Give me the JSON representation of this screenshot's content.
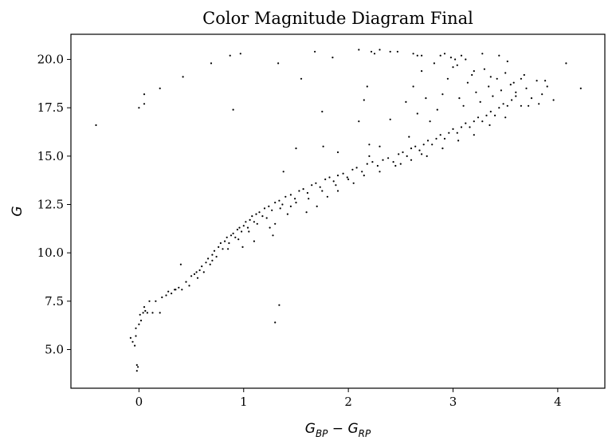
{
  "chart_data": {
    "type": "scatter",
    "title": "Color Magnitude Diagram Final",
    "xlabel": "G_BP − G_RP",
    "xlabel_parts": {
      "a": "G",
      "a_sub": "BP",
      "op": " − ",
      "b": "G",
      "b_sub": "RP"
    },
    "ylabel": "G",
    "xlim": [
      -0.65,
      4.45
    ],
    "ylim": [
      3.0,
      21.3
    ],
    "xticks": [
      0,
      1,
      2,
      3,
      4
    ],
    "xtick_labels": [
      "0",
      "1",
      "2",
      "3",
      "4"
    ],
    "yticks": [
      5.0,
      7.5,
      10.0,
      12.5,
      15.0,
      17.5,
      20.0
    ],
    "ytick_labels": [
      "5.0",
      "7.5",
      "10.0",
      "12.5",
      "15.0",
      "17.5",
      "20.0"
    ],
    "grid": false,
    "marker_color": "#000000",
    "points": [
      [
        -0.08,
        5.6
      ],
      [
        -0.06,
        5.4
      ],
      [
        -0.04,
        5.2
      ],
      [
        -0.03,
        5.7
      ],
      [
        -0.02,
        4.2
      ],
      [
        -0.02,
        3.9
      ],
      [
        -0.01,
        4.1
      ],
      [
        0.0,
        6.3
      ],
      [
        -0.03,
        6.1
      ],
      [
        0.02,
        6.5
      ],
      [
        0.01,
        6.8
      ],
      [
        0.04,
        6.9
      ],
      [
        0.06,
        7.0
      ],
      [
        0.05,
        7.2
      ],
      [
        0.08,
        6.9
      ],
      [
        0.1,
        7.5
      ],
      [
        0.13,
        6.9
      ],
      [
        0.16,
        7.5
      ],
      [
        0.2,
        6.9
      ],
      [
        0.22,
        7.7
      ],
      [
        0.26,
        7.8
      ],
      [
        0.28,
        8.0
      ],
      [
        0.31,
        7.9
      ],
      [
        0.34,
        8.1
      ],
      [
        0.38,
        8.2
      ],
      [
        0.41,
        8.1
      ],
      [
        0.45,
        8.5
      ],
      [
        0.48,
        8.3
      ],
      [
        0.5,
        8.8
      ],
      [
        0.53,
        8.9
      ],
      [
        0.56,
        8.7
      ],
      [
        0.58,
        9.1
      ],
      [
        0.6,
        9.3
      ],
      [
        0.62,
        9.0
      ],
      [
        0.64,
        9.5
      ],
      [
        0.66,
        9.7
      ],
      [
        0.68,
        9.4
      ],
      [
        0.7,
        9.9
      ],
      [
        0.72,
        10.1
      ],
      [
        0.74,
        9.8
      ],
      [
        0.76,
        10.3
      ],
      [
        0.78,
        10.5
      ],
      [
        0.8,
        10.2
      ],
      [
        0.82,
        10.6
      ],
      [
        0.84,
        10.8
      ],
      [
        0.86,
        10.5
      ],
      [
        0.88,
        10.9
      ],
      [
        0.9,
        11.0
      ],
      [
        0.92,
        10.8
      ],
      [
        0.94,
        11.2
      ],
      [
        0.96,
        11.3
      ],
      [
        0.98,
        11.1
      ],
      [
        1.0,
        11.4
      ],
      [
        1.02,
        11.6
      ],
      [
        1.04,
        11.3
      ],
      [
        1.06,
        11.7
      ],
      [
        1.08,
        11.9
      ],
      [
        1.1,
        11.6
      ],
      [
        1.12,
        12.0
      ],
      [
        1.15,
        12.1
      ],
      [
        1.18,
        11.9
      ],
      [
        1.2,
        12.3
      ],
      [
        1.24,
        12.4
      ],
      [
        1.27,
        12.2
      ],
      [
        1.3,
        12.6
      ],
      [
        1.34,
        12.7
      ],
      [
        1.37,
        12.5
      ],
      [
        1.4,
        12.9
      ],
      [
        1.45,
        13.0
      ],
      [
        1.49,
        12.8
      ],
      [
        1.53,
        13.2
      ],
      [
        1.57,
        13.3
      ],
      [
        1.61,
        13.1
      ],
      [
        1.65,
        13.5
      ],
      [
        1.69,
        13.6
      ],
      [
        1.73,
        13.4
      ],
      [
        1.78,
        13.8
      ],
      [
        1.82,
        13.9
      ],
      [
        1.86,
        13.7
      ],
      [
        1.9,
        14.0
      ],
      [
        1.95,
        14.1
      ],
      [
        1.99,
        13.9
      ],
      [
        2.04,
        14.3
      ],
      [
        2.08,
        14.4
      ],
      [
        2.13,
        14.2
      ],
      [
        2.18,
        14.6
      ],
      [
        2.23,
        14.7
      ],
      [
        2.28,
        14.5
      ],
      [
        2.33,
        14.8
      ],
      [
        2.38,
        14.9
      ],
      [
        2.43,
        14.7
      ],
      [
        2.48,
        15.1
      ],
      [
        2.52,
        15.2
      ],
      [
        2.56,
        15.0
      ],
      [
        2.6,
        15.4
      ],
      [
        2.64,
        15.5
      ],
      [
        2.68,
        15.3
      ],
      [
        2.72,
        15.6
      ],
      [
        2.76,
        15.8
      ],
      [
        2.8,
        15.6
      ],
      [
        2.84,
        15.9
      ],
      [
        2.88,
        16.1
      ],
      [
        2.92,
        15.9
      ],
      [
        2.96,
        16.2
      ],
      [
        3.0,
        16.4
      ],
      [
        3.04,
        16.2
      ],
      [
        3.08,
        16.5
      ],
      [
        3.12,
        16.7
      ],
      [
        3.16,
        16.5
      ],
      [
        3.2,
        16.8
      ],
      [
        3.24,
        17.0
      ],
      [
        3.28,
        16.8
      ],
      [
        3.32,
        17.1
      ],
      [
        3.36,
        17.3
      ],
      [
        3.4,
        17.1
      ],
      [
        3.44,
        17.5
      ],
      [
        3.48,
        17.7
      ],
      [
        3.52,
        17.6
      ],
      [
        3.56,
        17.9
      ],
      [
        3.6,
        18.1
      ],
      [
        0.35,
        8.1
      ],
      [
        0.55,
        9.0
      ],
      [
        0.7,
        9.6
      ],
      [
        0.85,
        10.2
      ],
      [
        0.95,
        10.7
      ],
      [
        1.05,
        11.1
      ],
      [
        1.13,
        11.5
      ],
      [
        1.22,
        11.8
      ],
      [
        1.35,
        12.3
      ],
      [
        1.5,
        12.6
      ],
      [
        1.62,
        12.8
      ],
      [
        1.75,
        13.2
      ],
      [
        1.88,
        13.5
      ],
      [
        2.0,
        13.8
      ],
      [
        2.15,
        14.0
      ],
      [
        2.3,
        14.2
      ],
      [
        2.45,
        14.5
      ],
      [
        2.6,
        14.8
      ],
      [
        2.75,
        15.0
      ],
      [
        2.9,
        15.4
      ],
      [
        3.05,
        15.8
      ],
      [
        3.2,
        16.1
      ],
      [
        3.35,
        16.6
      ],
      [
        3.5,
        17.0
      ],
      [
        3.65,
        17.6
      ],
      [
        2.4,
        16.9
      ],
      [
        2.55,
        17.8
      ],
      [
        2.62,
        18.6
      ],
      [
        2.7,
        19.4
      ],
      [
        2.78,
        16.8
      ],
      [
        2.85,
        17.4
      ],
      [
        2.9,
        18.2
      ],
      [
        2.95,
        19.0
      ],
      [
        3.0,
        19.6
      ],
      [
        3.06,
        18.0
      ],
      [
        3.1,
        17.6
      ],
      [
        3.14,
        18.8
      ],
      [
        3.18,
        19.2
      ],
      [
        3.22,
        18.3
      ],
      [
        3.26,
        17.8
      ],
      [
        3.3,
        19.5
      ],
      [
        3.34,
        18.6
      ],
      [
        3.38,
        18.1
      ],
      [
        3.42,
        19.0
      ],
      [
        3.46,
        18.4
      ],
      [
        3.5,
        19.3
      ],
      [
        3.55,
        18.7
      ],
      [
        3.6,
        18.3
      ],
      [
        3.65,
        19.0
      ],
      [
        3.7,
        18.5
      ],
      [
        3.75,
        18.0
      ],
      [
        3.8,
        18.9
      ],
      [
        3.85,
        18.2
      ],
      [
        3.9,
        18.6
      ],
      [
        3.96,
        17.9
      ],
      [
        2.58,
        16.0
      ],
      [
        2.66,
        17.2
      ],
      [
        2.74,
        18.0
      ],
      [
        2.82,
        19.8
      ],
      [
        2.88,
        20.2
      ],
      [
        2.98,
        20.1
      ],
      [
        3.04,
        19.7
      ],
      [
        3.12,
        20.0
      ],
      [
        3.2,
        19.4
      ],
      [
        3.28,
        20.3
      ],
      [
        3.36,
        19.1
      ],
      [
        3.44,
        20.2
      ],
      [
        3.52,
        19.9
      ],
      [
        3.58,
        18.8
      ],
      [
        3.68,
        19.2
      ],
      [
        3.72,
        17.6
      ],
      [
        3.82,
        17.7
      ],
      [
        3.88,
        18.9
      ],
      [
        2.62,
        20.3
      ],
      [
        2.66,
        20.2
      ],
      [
        2.7,
        20.2
      ],
      [
        2.92,
        20.3
      ],
      [
        3.02,
        20.0
      ],
      [
        3.08,
        20.2
      ],
      [
        -0.41,
        16.6
      ],
      [
        0.0,
        17.5
      ],
      [
        0.05,
        17.7
      ],
      [
        0.05,
        18.2
      ],
      [
        0.2,
        18.5
      ],
      [
        0.42,
        19.1
      ],
      [
        0.69,
        19.8
      ],
      [
        0.87,
        20.2
      ],
      [
        0.97,
        20.3
      ],
      [
        0.9,
        17.4
      ],
      [
        1.33,
        19.8
      ],
      [
        1.55,
        19.0
      ],
      [
        1.68,
        20.4
      ],
      [
        1.85,
        20.1
      ],
      [
        2.1,
        20.5
      ],
      [
        2.22,
        20.4
      ],
      [
        2.25,
        20.3
      ],
      [
        2.3,
        20.5
      ],
      [
        2.4,
        20.4
      ],
      [
        2.47,
        20.4
      ],
      [
        2.18,
        18.6
      ],
      [
        2.15,
        17.9
      ],
      [
        2.1,
        16.8
      ],
      [
        1.75,
        17.3
      ],
      [
        1.76,
        15.5
      ],
      [
        1.9,
        15.2
      ],
      [
        1.5,
        15.4
      ],
      [
        1.38,
        14.2
      ],
      [
        2.3,
        15.5
      ],
      [
        2.2,
        15.0
      ],
      [
        4.08,
        19.8
      ],
      [
        4.22,
        18.5
      ],
      [
        1.34,
        7.3
      ],
      [
        1.3,
        6.4
      ],
      [
        0.4,
        9.4
      ],
      [
        1.8,
        12.9
      ],
      [
        1.9,
        13.2
      ],
      [
        2.05,
        13.6
      ],
      [
        1.6,
        12.1
      ],
      [
        1.45,
        12.4
      ],
      [
        1.3,
        11.5
      ],
      [
        1.28,
        10.9
      ],
      [
        1.25,
        11.3
      ],
      [
        1.1,
        10.6
      ],
      [
        0.99,
        10.3
      ],
      [
        1.7,
        12.4
      ],
      [
        1.42,
        12.0
      ],
      [
        2.2,
        15.6
      ],
      [
        2.5,
        14.6
      ],
      [
        2.7,
        15.1
      ]
    ]
  }
}
